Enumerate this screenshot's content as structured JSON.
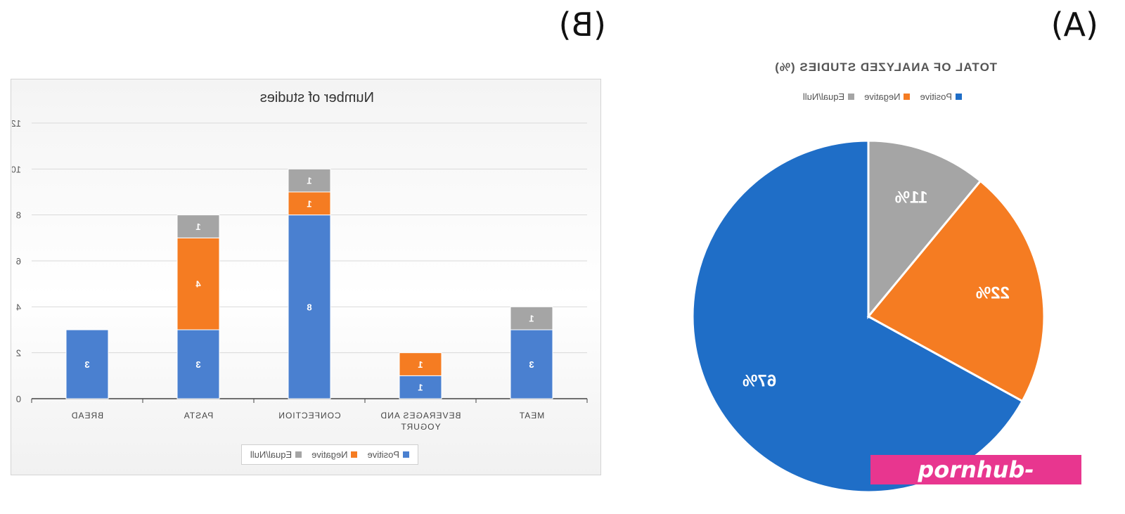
{
  "figure": {
    "panel_a_label": "(A)",
    "panel_b_label": "(B)"
  },
  "chart_data": [
    {
      "type": "pie",
      "panel": "(A)",
      "title": "TOTAL OF ANALYZED STUDIES (%)",
      "labels": [
        "Positive",
        "Negative",
        "Equal/Null"
      ],
      "values": [
        67,
        22,
        11
      ],
      "data_labels": [
        "67%",
        "22%",
        "11%"
      ],
      "colors": [
        "#1f6ec7",
        "#f57c22",
        "#a5a5a5"
      ],
      "legend": "top"
    },
    {
      "type": "bar",
      "stacked": true,
      "panel": "(B)",
      "title": "Number of studies",
      "categories": [
        "MEAT",
        "BEVERAGES AND YOGURT",
        "CONFECTION",
        "PASTA",
        "BREAD"
      ],
      "series": [
        {
          "name": "Positive",
          "values": [
            3,
            1,
            8,
            3,
            3
          ],
          "color": "#4a80d0"
        },
        {
          "name": "Negative",
          "values": [
            0,
            1,
            1,
            4,
            0
          ],
          "color": "#f57c22"
        },
        {
          "name": "Equal/Null",
          "values": [
            1,
            0,
            1,
            1,
            0
          ],
          "color": "#a5a5a5"
        }
      ],
      "ylim": [
        0,
        12
      ],
      "yticks": [
        0,
        2,
        4,
        6,
        8,
        10,
        12
      ],
      "grid": true,
      "legend": "bottom"
    }
  ],
  "watermark": {
    "text": "pornhub-pics.com"
  }
}
